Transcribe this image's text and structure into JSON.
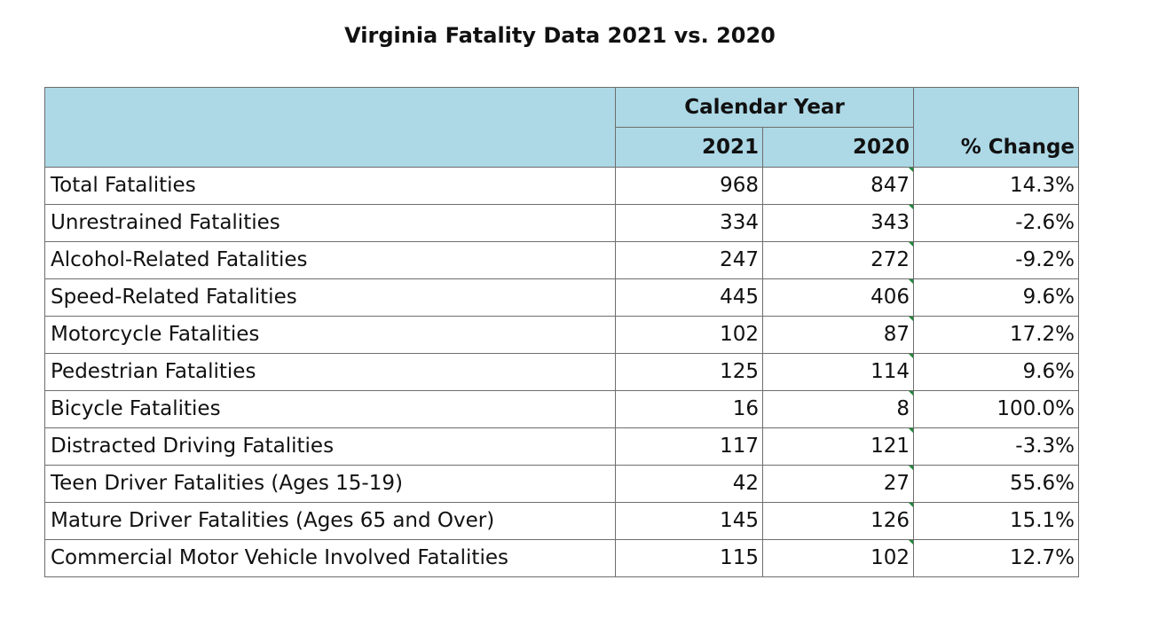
{
  "title": "Virginia Fatality Data 2021 vs. 2020",
  "table": {
    "group_header": "Calendar Year",
    "col_2021": "2021",
    "col_2020": "2020",
    "col_change": "% Change",
    "rows": [
      {
        "label": "Total Fatalities",
        "y2021": "968",
        "y2020": "847",
        "change": "14.3%"
      },
      {
        "label": "Unrestrained Fatalities",
        "y2021": "334",
        "y2020": "343",
        "change": "-2.6%"
      },
      {
        "label": "Alcohol-Related Fatalities",
        "y2021": "247",
        "y2020": "272",
        "change": "-9.2%"
      },
      {
        "label": "Speed-Related Fatalities",
        "y2021": "445",
        "y2020": "406",
        "change": "9.6%"
      },
      {
        "label": "Motorcycle Fatalities",
        "y2021": "102",
        "y2020": "87",
        "change": "17.2%"
      },
      {
        "label": "Pedestrian Fatalities",
        "y2021": "125",
        "y2020": "114",
        "change": "9.6%"
      },
      {
        "label": "Bicycle Fatalities",
        "y2021": "16",
        "y2020": "8",
        "change": "100.0%"
      },
      {
        "label": "Distracted Driving Fatalities",
        "y2021": "117",
        "y2020": "121",
        "change": "-3.3%"
      },
      {
        "label": "Teen Driver Fatalities (Ages 15-19)",
        "y2021": "42",
        "y2020": "27",
        "change": "55.6%"
      },
      {
        "label": "Mature Driver Fatalities (Ages 65 and Over)",
        "y2021": "145",
        "y2020": "126",
        "change": "15.1%"
      },
      {
        "label": "Commercial Motor Vehicle Involved Fatalities",
        "y2021": "115",
        "y2020": "102",
        "change": "12.7%"
      }
    ]
  },
  "colors": {
    "header_bg": "#add8e6",
    "cell_marker": "#1f8a3a"
  }
}
